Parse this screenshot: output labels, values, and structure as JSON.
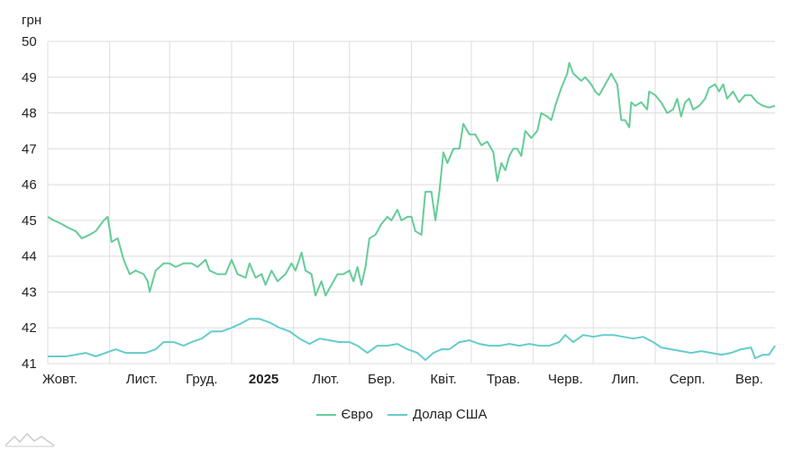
{
  "chart_data": {
    "type": "line",
    "unit_label": "грн",
    "ylim": [
      41,
      50
    ],
    "yticks": [
      41,
      42,
      43,
      44,
      45,
      46,
      47,
      48,
      49,
      50
    ],
    "grid": true,
    "legend_position": "bottom-center",
    "x_start": "2024-10-01",
    "x_end": "2025-09-30",
    "xticks": [
      {
        "label": "Жовт.",
        "date": "2024-10-01",
        "bold": false
      },
      {
        "label": "Лист.",
        "date": "2024-11-01",
        "bold": false
      },
      {
        "label": "Груд.",
        "date": "2024-12-01",
        "bold": false
      },
      {
        "label": "2025",
        "date": "2025-01-01",
        "bold": true
      },
      {
        "label": "Лют.",
        "date": "2025-02-01",
        "bold": false
      },
      {
        "label": "Бер.",
        "date": "2025-03-01",
        "bold": false
      },
      {
        "label": "Квіт.",
        "date": "2025-04-01",
        "bold": false
      },
      {
        "label": "Трав.",
        "date": "2025-05-01",
        "bold": false
      },
      {
        "label": "Черв.",
        "date": "2025-06-01",
        "bold": false
      },
      {
        "label": "Лип.",
        "date": "2025-07-01",
        "bold": false
      },
      {
        "label": "Серп.",
        "date": "2025-08-01",
        "bold": false
      },
      {
        "label": "Вер.",
        "date": "2025-09-01",
        "bold": false
      }
    ],
    "series": [
      {
        "name": "Євро",
        "color": "#66cc99",
        "points": [
          [
            "2024-10-01",
            45.1
          ],
          [
            "2024-10-04",
            45.0
          ],
          [
            "2024-10-08",
            44.9
          ],
          [
            "2024-10-11",
            44.8
          ],
          [
            "2024-10-15",
            44.7
          ],
          [
            "2024-10-18",
            44.5
          ],
          [
            "2024-10-22",
            44.6
          ],
          [
            "2024-10-25",
            44.7
          ],
          [
            "2024-10-29",
            45.0
          ],
          [
            "2024-10-31",
            45.1
          ],
          [
            "2024-11-02",
            44.4
          ],
          [
            "2024-11-05",
            44.5
          ],
          [
            "2024-11-08",
            43.9
          ],
          [
            "2024-11-11",
            43.5
          ],
          [
            "2024-11-14",
            43.6
          ],
          [
            "2024-11-18",
            43.5
          ],
          [
            "2024-11-20",
            43.3
          ],
          [
            "2024-11-21",
            43.0
          ],
          [
            "2024-11-24",
            43.6
          ],
          [
            "2024-11-28",
            43.8
          ],
          [
            "2024-12-01",
            43.8
          ],
          [
            "2024-12-04",
            43.7
          ],
          [
            "2024-12-08",
            43.8
          ],
          [
            "2024-12-12",
            43.8
          ],
          [
            "2024-12-15",
            43.7
          ],
          [
            "2024-12-19",
            43.9
          ],
          [
            "2024-12-21",
            43.6
          ],
          [
            "2024-12-25",
            43.5
          ],
          [
            "2024-12-29",
            43.5
          ],
          [
            "2025-01-01",
            43.9
          ],
          [
            "2025-01-04",
            43.5
          ],
          [
            "2025-01-08",
            43.4
          ],
          [
            "2025-01-10",
            43.8
          ],
          [
            "2025-01-13",
            43.4
          ],
          [
            "2025-01-16",
            43.5
          ],
          [
            "2025-01-18",
            43.2
          ],
          [
            "2025-01-21",
            43.6
          ],
          [
            "2025-01-24",
            43.3
          ],
          [
            "2025-01-28",
            43.5
          ],
          [
            "2025-01-31",
            43.8
          ],
          [
            "2025-02-02",
            43.6
          ],
          [
            "2025-02-05",
            44.1
          ],
          [
            "2025-02-07",
            43.6
          ],
          [
            "2025-02-10",
            43.5
          ],
          [
            "2025-02-12",
            42.9
          ],
          [
            "2025-02-15",
            43.3
          ],
          [
            "2025-02-17",
            42.9
          ],
          [
            "2025-02-20",
            43.2
          ],
          [
            "2025-02-23",
            43.5
          ],
          [
            "2025-02-26",
            43.5
          ],
          [
            "2025-03-01",
            43.6
          ],
          [
            "2025-03-03",
            43.3
          ],
          [
            "2025-03-05",
            43.7
          ],
          [
            "2025-03-07",
            43.2
          ],
          [
            "2025-03-09",
            43.7
          ],
          [
            "2025-03-11",
            44.5
          ],
          [
            "2025-03-14",
            44.6
          ],
          [
            "2025-03-17",
            44.9
          ],
          [
            "2025-03-20",
            45.1
          ],
          [
            "2025-03-22",
            45.0
          ],
          [
            "2025-03-25",
            45.3
          ],
          [
            "2025-03-27",
            45.0
          ],
          [
            "2025-03-30",
            45.1
          ],
          [
            "2025-04-01",
            45.1
          ],
          [
            "2025-04-03",
            44.7
          ],
          [
            "2025-04-06",
            44.6
          ],
          [
            "2025-04-08",
            45.8
          ],
          [
            "2025-04-11",
            45.8
          ],
          [
            "2025-04-13",
            45.0
          ],
          [
            "2025-04-15",
            45.8
          ],
          [
            "2025-04-17",
            46.9
          ],
          [
            "2025-04-19",
            46.6
          ],
          [
            "2025-04-22",
            47.0
          ],
          [
            "2025-04-25",
            47.0
          ],
          [
            "2025-04-27",
            47.7
          ],
          [
            "2025-04-30",
            47.4
          ],
          [
            "2025-05-03",
            47.4
          ],
          [
            "2025-05-06",
            47.1
          ],
          [
            "2025-05-09",
            47.2
          ],
          [
            "2025-05-12",
            46.9
          ],
          [
            "2025-05-14",
            46.1
          ],
          [
            "2025-05-16",
            46.6
          ],
          [
            "2025-05-18",
            46.4
          ],
          [
            "2025-05-20",
            46.8
          ],
          [
            "2025-05-22",
            47.0
          ],
          [
            "2025-05-24",
            47.0
          ],
          [
            "2025-05-26",
            46.8
          ],
          [
            "2025-05-28",
            47.5
          ],
          [
            "2025-05-31",
            47.3
          ],
          [
            "2025-06-03",
            47.5
          ],
          [
            "2025-06-05",
            48.0
          ],
          [
            "2025-06-08",
            47.9
          ],
          [
            "2025-06-10",
            47.8
          ],
          [
            "2025-06-12",
            48.2
          ],
          [
            "2025-06-15",
            48.7
          ],
          [
            "2025-06-18",
            49.1
          ],
          [
            "2025-06-19",
            49.4
          ],
          [
            "2025-06-21",
            49.1
          ],
          [
            "2025-06-25",
            48.9
          ],
          [
            "2025-06-27",
            49.0
          ],
          [
            "2025-06-30",
            48.8
          ],
          [
            "2025-07-02",
            48.6
          ],
          [
            "2025-07-04",
            48.5
          ],
          [
            "2025-07-07",
            48.8
          ],
          [
            "2025-07-10",
            49.1
          ],
          [
            "2025-07-13",
            48.8
          ],
          [
            "2025-07-15",
            47.8
          ],
          [
            "2025-07-17",
            47.8
          ],
          [
            "2025-07-19",
            47.6
          ],
          [
            "2025-07-20",
            48.3
          ],
          [
            "2025-07-22",
            48.2
          ],
          [
            "2025-07-25",
            48.3
          ],
          [
            "2025-07-28",
            48.1
          ],
          [
            "2025-07-29",
            48.6
          ],
          [
            "2025-08-01",
            48.5
          ],
          [
            "2025-08-04",
            48.3
          ],
          [
            "2025-08-07",
            48.0
          ],
          [
            "2025-08-10",
            48.1
          ],
          [
            "2025-08-12",
            48.4
          ],
          [
            "2025-08-14",
            47.9
          ],
          [
            "2025-08-16",
            48.3
          ],
          [
            "2025-08-18",
            48.4
          ],
          [
            "2025-08-20",
            48.1
          ],
          [
            "2025-08-23",
            48.2
          ],
          [
            "2025-08-26",
            48.4
          ],
          [
            "2025-08-28",
            48.7
          ],
          [
            "2025-08-31",
            48.8
          ],
          [
            "2025-09-02",
            48.6
          ],
          [
            "2025-09-04",
            48.8
          ],
          [
            "2025-09-06",
            48.4
          ],
          [
            "2025-09-09",
            48.6
          ],
          [
            "2025-09-12",
            48.3
          ],
          [
            "2025-09-15",
            48.5
          ],
          [
            "2025-09-18",
            48.5
          ],
          [
            "2025-09-21",
            48.3
          ],
          [
            "2025-09-24",
            48.2
          ],
          [
            "2025-09-27",
            48.15
          ],
          [
            "2025-09-30",
            48.2
          ]
        ]
      },
      {
        "name": "Долар США",
        "color": "#66cccc",
        "points": [
          [
            "2024-10-01",
            41.2
          ],
          [
            "2024-10-05",
            41.2
          ],
          [
            "2024-10-10",
            41.2
          ],
          [
            "2024-10-15",
            41.25
          ],
          [
            "2024-10-20",
            41.3
          ],
          [
            "2024-10-25",
            41.2
          ],
          [
            "2024-10-30",
            41.3
          ],
          [
            "2024-11-04",
            41.4
          ],
          [
            "2024-11-09",
            41.3
          ],
          [
            "2024-11-14",
            41.3
          ],
          [
            "2024-11-19",
            41.3
          ],
          [
            "2024-11-24",
            41.4
          ],
          [
            "2024-11-28",
            41.6
          ],
          [
            "2024-12-03",
            41.6
          ],
          [
            "2024-12-08",
            41.5
          ],
          [
            "2024-12-12",
            41.6
          ],
          [
            "2024-12-17",
            41.7
          ],
          [
            "2024-12-22",
            41.9
          ],
          [
            "2024-12-27",
            41.9
          ],
          [
            "2025-01-01",
            42.0
          ],
          [
            "2025-01-05",
            42.1
          ],
          [
            "2025-01-10",
            42.25
          ],
          [
            "2025-01-15",
            42.25
          ],
          [
            "2025-01-20",
            42.15
          ],
          [
            "2025-01-25",
            42.0
          ],
          [
            "2025-01-30",
            41.9
          ],
          [
            "2025-02-04",
            41.7
          ],
          [
            "2025-02-09",
            41.55
          ],
          [
            "2025-02-14",
            41.7
          ],
          [
            "2025-02-19",
            41.65
          ],
          [
            "2025-02-24",
            41.6
          ],
          [
            "2025-03-01",
            41.6
          ],
          [
            "2025-03-05",
            41.5
          ],
          [
            "2025-03-10",
            41.3
          ],
          [
            "2025-03-15",
            41.5
          ],
          [
            "2025-03-20",
            41.5
          ],
          [
            "2025-03-25",
            41.55
          ],
          [
            "2025-03-30",
            41.4
          ],
          [
            "2025-04-04",
            41.3
          ],
          [
            "2025-04-08",
            41.1
          ],
          [
            "2025-04-12",
            41.3
          ],
          [
            "2025-04-16",
            41.4
          ],
          [
            "2025-04-20",
            41.4
          ],
          [
            "2025-04-25",
            41.6
          ],
          [
            "2025-04-30",
            41.65
          ],
          [
            "2025-05-05",
            41.55
          ],
          [
            "2025-05-10",
            41.5
          ],
          [
            "2025-05-15",
            41.5
          ],
          [
            "2025-05-20",
            41.55
          ],
          [
            "2025-05-25",
            41.5
          ],
          [
            "2025-05-30",
            41.55
          ],
          [
            "2025-06-04",
            41.5
          ],
          [
            "2025-06-09",
            41.5
          ],
          [
            "2025-06-14",
            41.6
          ],
          [
            "2025-06-17",
            41.8
          ],
          [
            "2025-06-21",
            41.6
          ],
          [
            "2025-06-26",
            41.8
          ],
          [
            "2025-07-01",
            41.75
          ],
          [
            "2025-07-06",
            41.8
          ],
          [
            "2025-07-11",
            41.8
          ],
          [
            "2025-07-16",
            41.75
          ],
          [
            "2025-07-21",
            41.7
          ],
          [
            "2025-07-26",
            41.75
          ],
          [
            "2025-07-31",
            41.6
          ],
          [
            "2025-08-04",
            41.45
          ],
          [
            "2025-08-09",
            41.4
          ],
          [
            "2025-08-14",
            41.35
          ],
          [
            "2025-08-19",
            41.3
          ],
          [
            "2025-08-24",
            41.35
          ],
          [
            "2025-08-29",
            41.3
          ],
          [
            "2025-09-03",
            41.25
          ],
          [
            "2025-09-08",
            41.3
          ],
          [
            "2025-09-13",
            41.4
          ],
          [
            "2025-09-18",
            41.45
          ],
          [
            "2025-09-20",
            41.15
          ],
          [
            "2025-09-24",
            41.25
          ],
          [
            "2025-09-27",
            41.25
          ],
          [
            "2025-09-30",
            41.5
          ]
        ]
      }
    ]
  }
}
